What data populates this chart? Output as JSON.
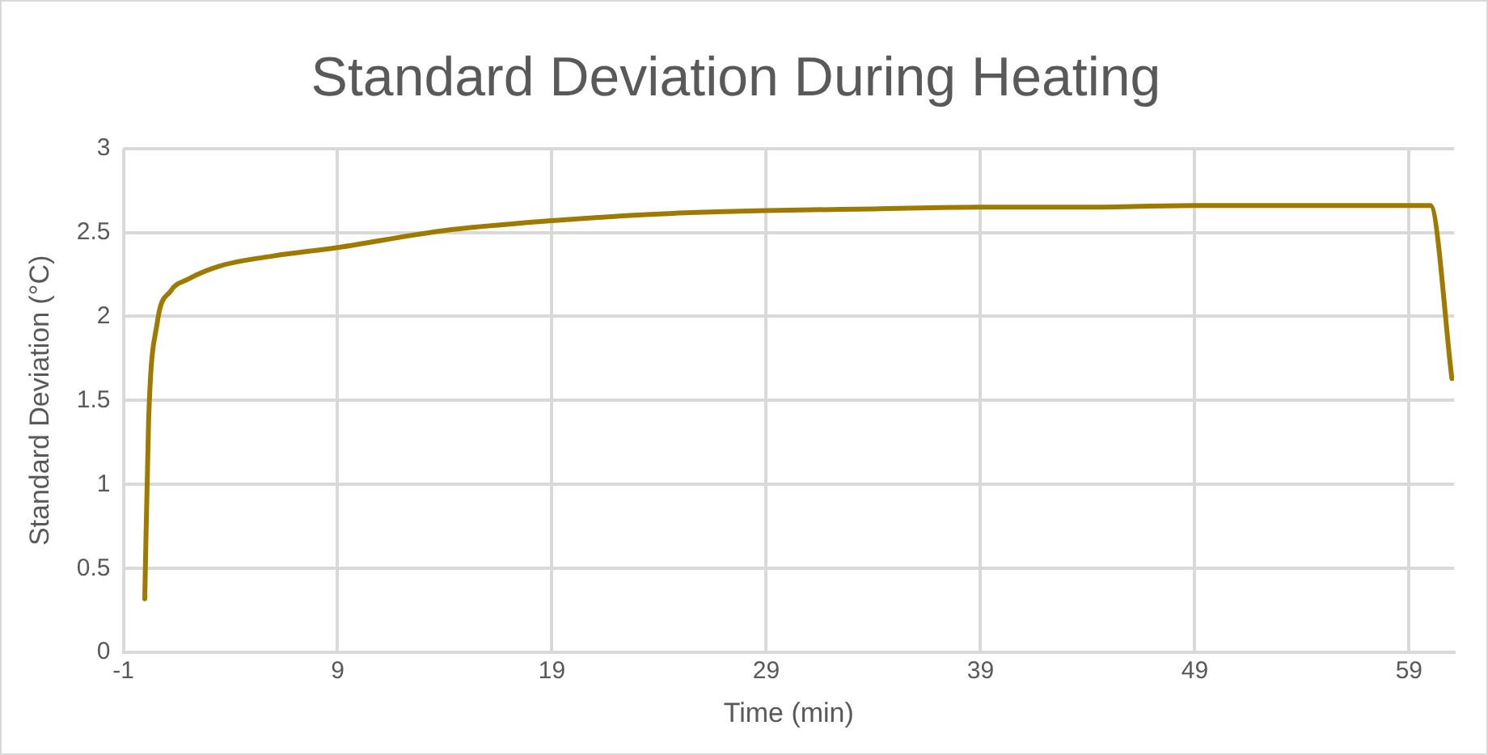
{
  "chart_data": {
    "type": "line",
    "title": "Standard Deviation During Heating",
    "xlabel": "Time (min)",
    "ylabel": "Standard Deviation (°C)",
    "x": [
      0,
      0.18,
      0.58,
      1.2,
      2,
      3.5,
      6,
      9,
      13.9,
      19,
      24,
      29,
      34,
      39,
      44,
      49,
      55,
      60,
      61
    ],
    "series": [
      {
        "color": "#9e7b00",
        "values": [
          0.32,
          1.38,
          1.96,
          2.15,
          2.22,
          2.3,
          2.36,
          2.41,
          2.51,
          2.57,
          2.61,
          2.63,
          2.64,
          2.65,
          2.65,
          2.66,
          2.66,
          2.66,
          1.63
        ]
      }
    ],
    "xlim": [
      -1,
      61.1
    ],
    "xticks": [
      -1,
      9,
      19,
      29,
      39,
      49,
      59
    ],
    "ylim": [
      0,
      3
    ],
    "yticks": [
      0,
      0.5,
      1,
      1.5,
      2,
      2.5,
      3
    ],
    "grid": true,
    "legend": false,
    "marker": "none",
    "line_style": "solid"
  }
}
